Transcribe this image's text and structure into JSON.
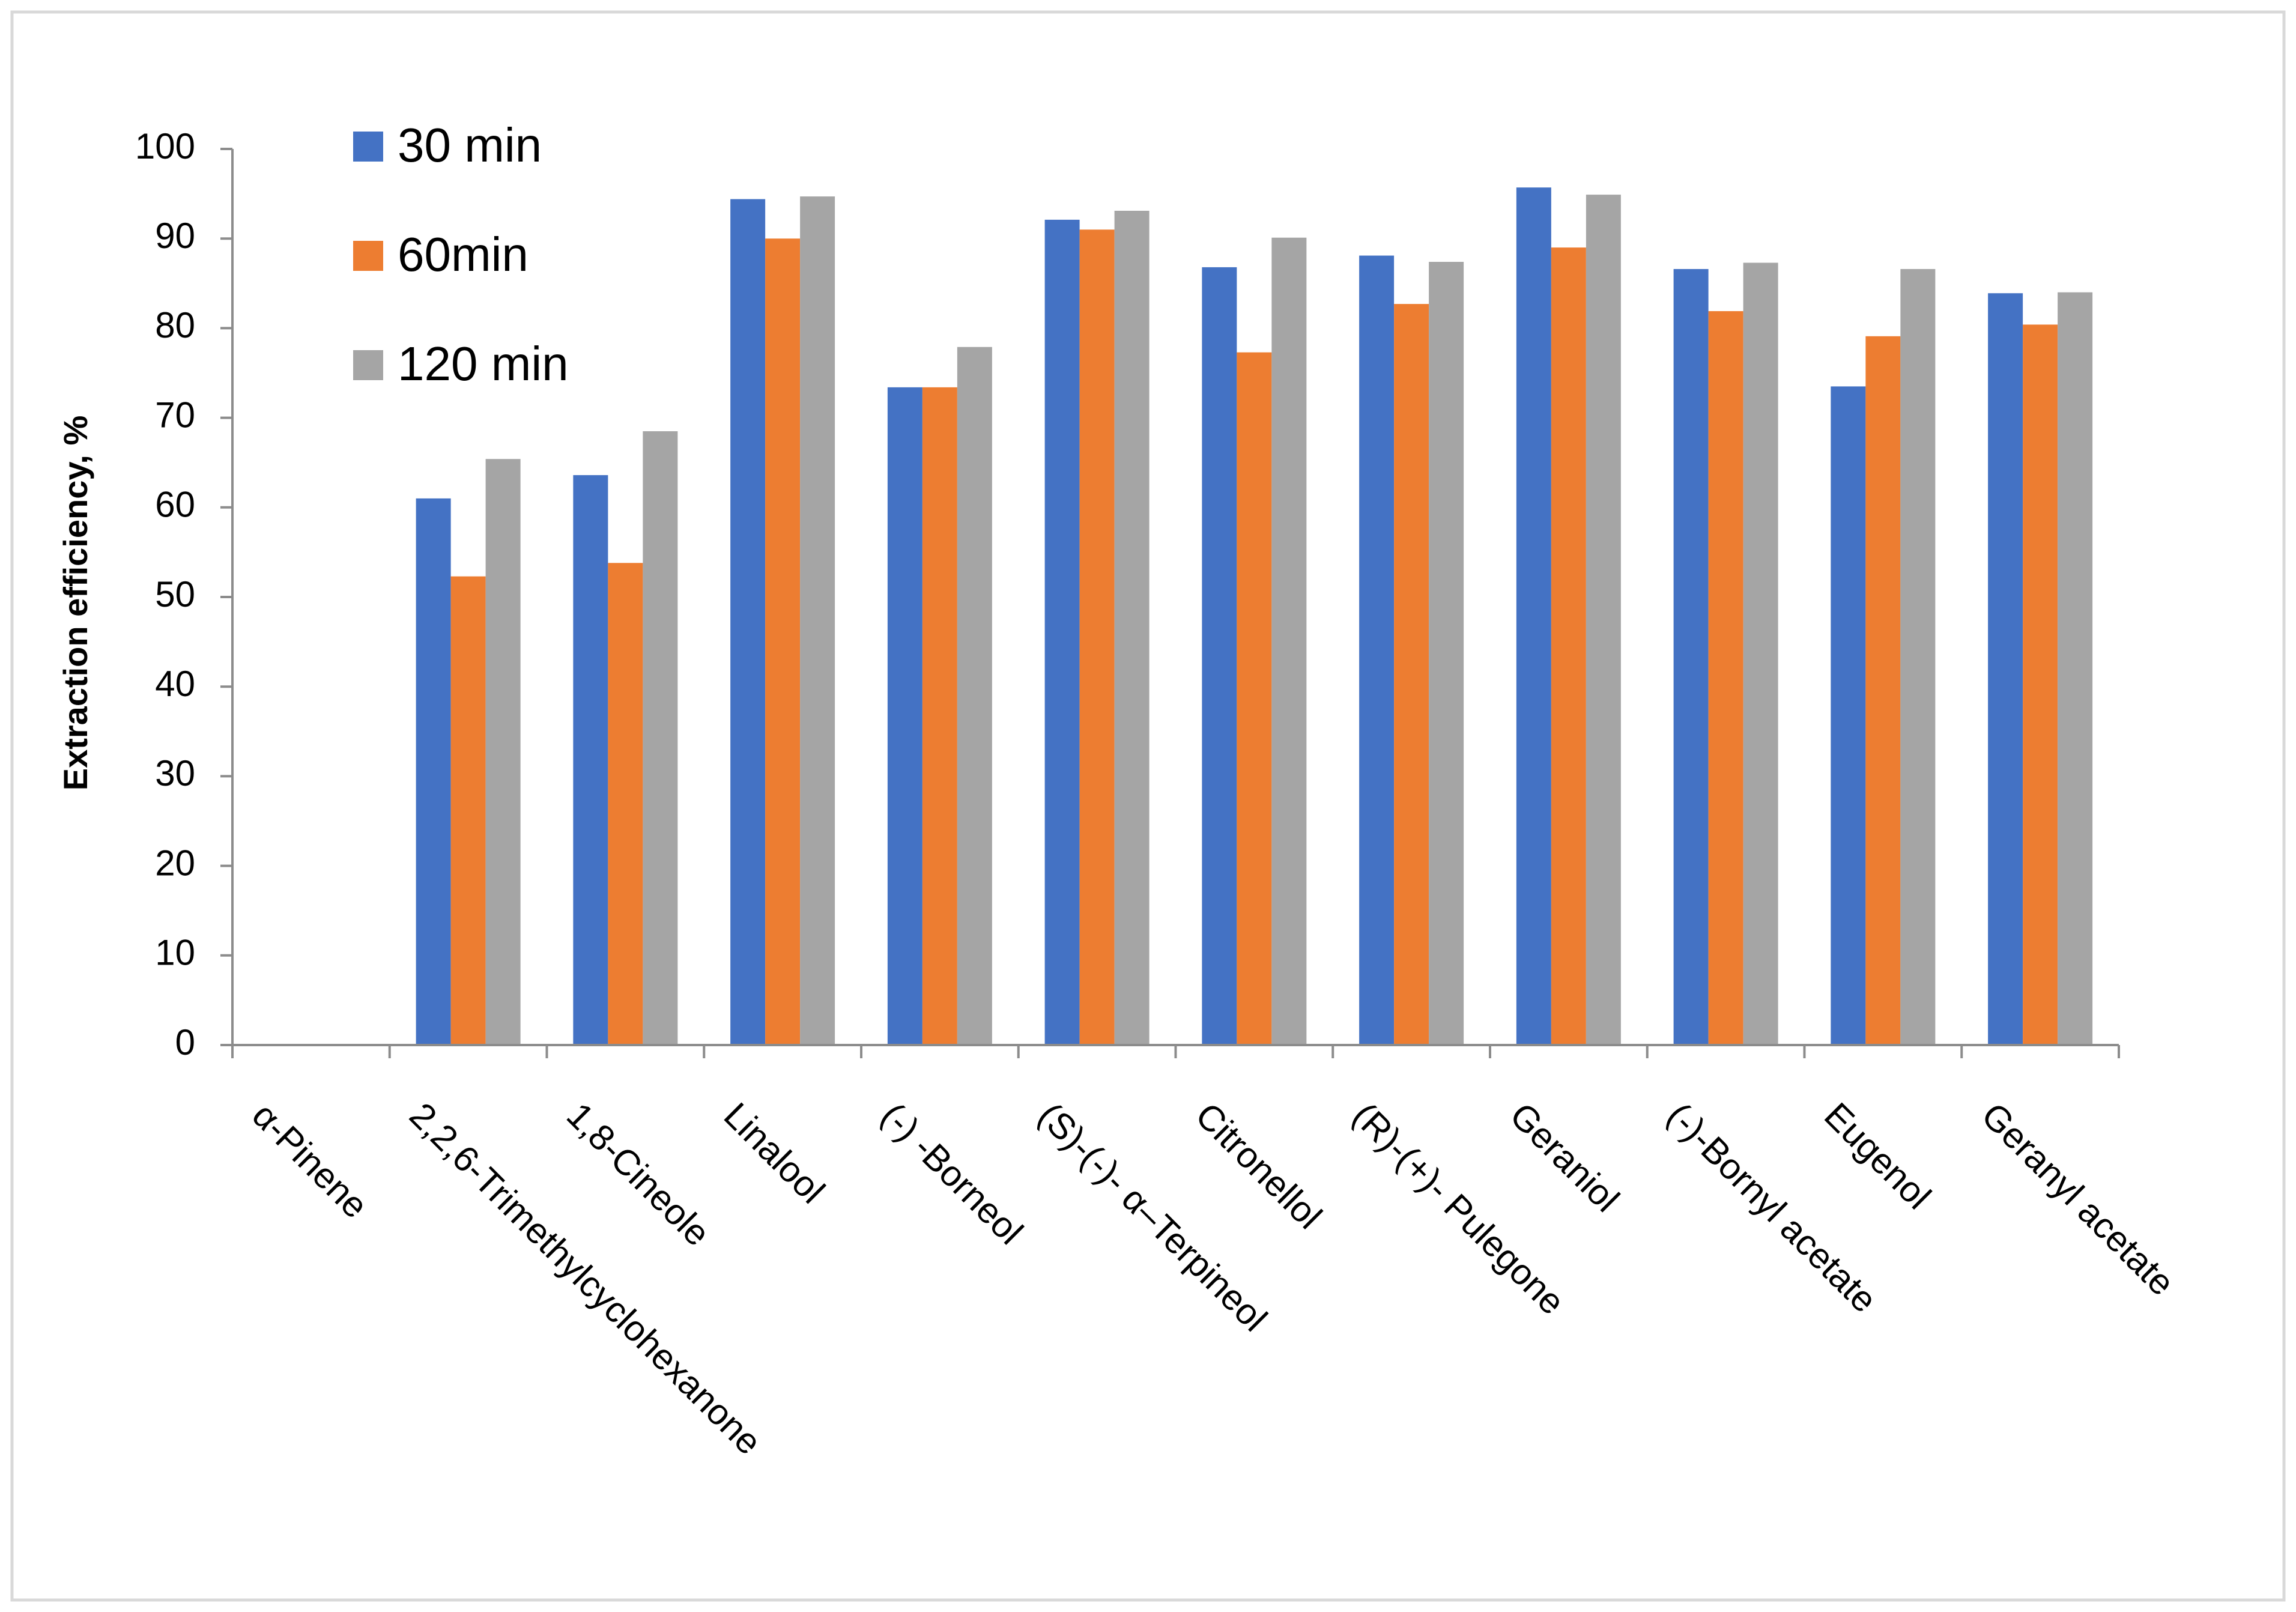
{
  "chart_data": {
    "type": "bar",
    "title": "",
    "xlabel": "",
    "ylabel": "Extraction efficiency, %",
    "ylim": [
      0,
      100
    ],
    "yticks": [
      0,
      10,
      20,
      30,
      40,
      50,
      60,
      70,
      80,
      90,
      100
    ],
    "grid": false,
    "legend_position": "top-left",
    "categories": [
      "α-Pinene",
      "2,2,6-Trimethylcyclohexanone",
      "1,8-Cineole",
      "Linalool",
      "(-) -Borneol",
      "(S)-(-)- α–Terpineol",
      "Citronellol",
      "(R)-(+)- Pulegone",
      "Geraniol",
      "(-)-Bornyl acetate",
      "Eugenol",
      "Geranyl acetate"
    ],
    "series": [
      {
        "name": "30 min",
        "color": "#4472C4",
        "values": [
          0,
          61,
          63.6,
          94.4,
          73.4,
          92.1,
          86.8,
          88.1,
          95.7,
          86.6,
          73.5,
          83.9
        ]
      },
      {
        "name": "60min",
        "color": "#ED7D31",
        "values": [
          0,
          52.3,
          53.8,
          90,
          73.4,
          91,
          77.3,
          82.7,
          89,
          81.9,
          79.1,
          80.4
        ]
      },
      {
        "name": "120 min",
        "color": "#A5A5A5",
        "values": [
          0,
          65.4,
          68.5,
          94.7,
          77.9,
          93.1,
          90.1,
          87.4,
          94.9,
          87.3,
          86.6,
          84
        ]
      }
    ]
  }
}
